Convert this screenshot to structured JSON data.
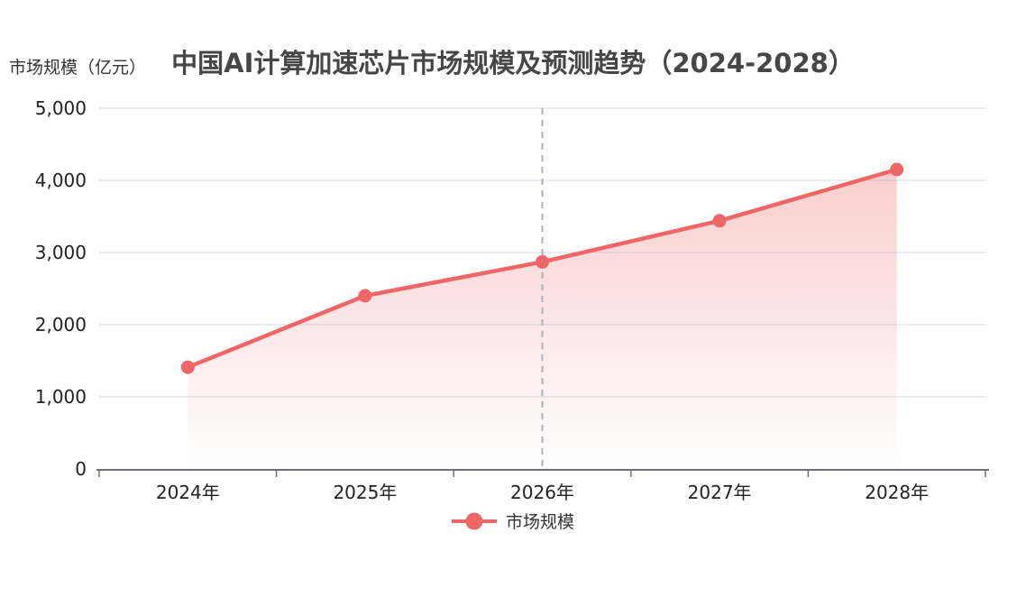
{
  "chart_data": {
    "type": "line",
    "title": "中国AI计算加速芯片市场规模及预测趋势（2024-2028）",
    "y_axis_name": "市场规模（亿元）",
    "xlabel": "",
    "ylabel": "市场规模（亿元）",
    "categories": [
      "2024年",
      "2025年",
      "2026年",
      "2027年",
      "2028年"
    ],
    "series": [
      {
        "name": "市场规模",
        "values": [
          1410,
          2400,
          2870,
          3440,
          4150
        ]
      }
    ],
    "ylim": [
      0,
      5000
    ],
    "y_tick_step": 1000,
    "y_tick_labels": [
      "0",
      "1,000",
      "2,000",
      "3,000",
      "4,000",
      "5,000"
    ],
    "grid": true,
    "legend_position": "bottom",
    "annotations": {
      "dashed_vline_at": "2026年"
    },
    "colors": {
      "series": "#ee6666",
      "area_top": "rgba(238,102,102,0.32)",
      "area_bottom": "rgba(238,102,102,0)",
      "grid_line": "#e0e6f1",
      "axis_line": "#6e7079",
      "dashed_line": "#a9b0bb",
      "title": "#464646",
      "tick_label": "#222222",
      "legend_text": "#333333"
    }
  }
}
